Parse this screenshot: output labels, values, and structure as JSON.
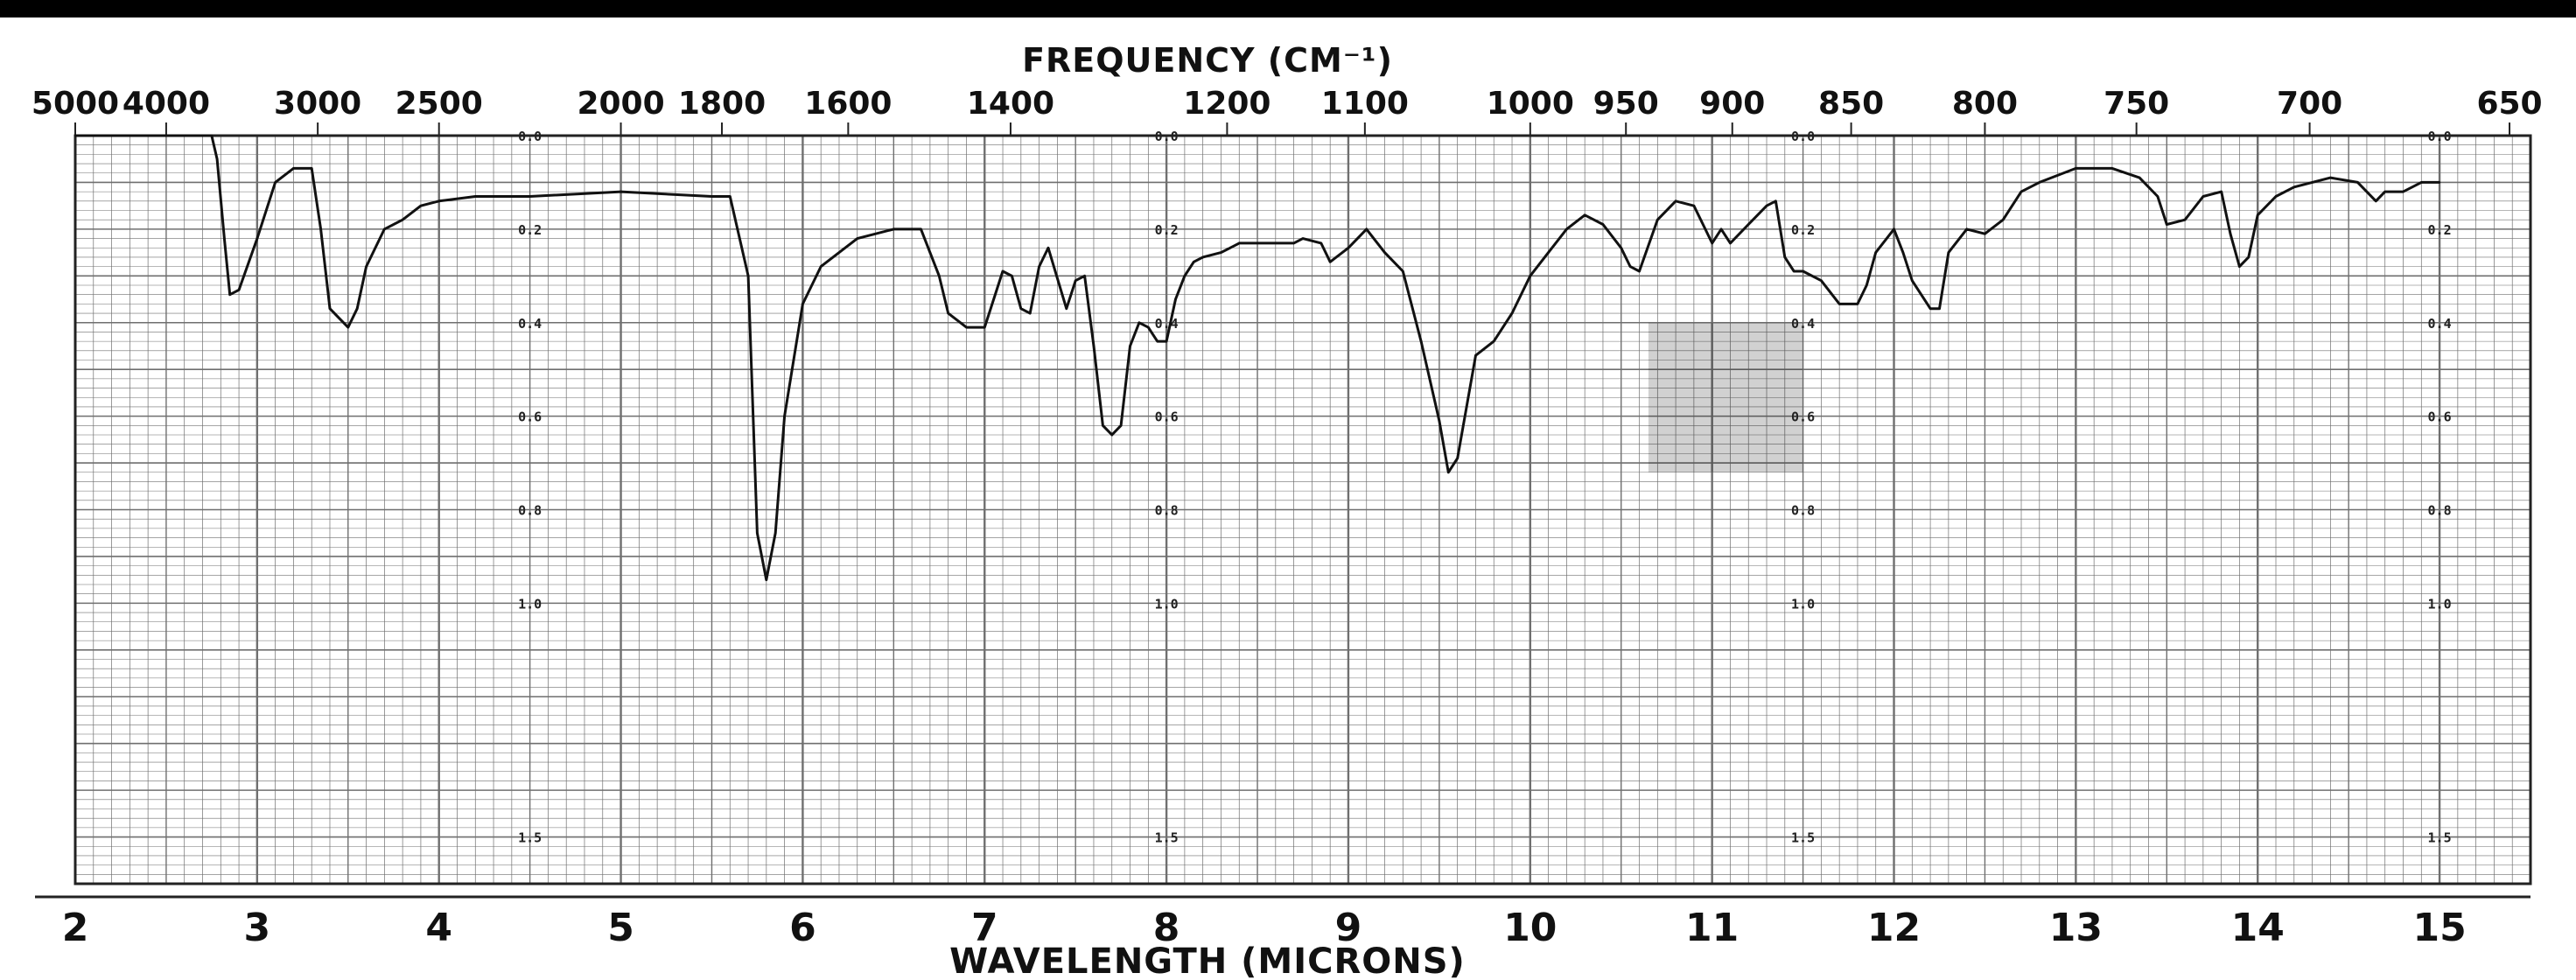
{
  "chart_data": {
    "type": "line",
    "title_top": "FREQUENCY (CM⁻¹)",
    "xlabel": "WAVELENGTH (MICRONS)",
    "x_unit": "microns",
    "xlim": [
      2,
      15.5
    ],
    "ylim": [
      0,
      1.6
    ],
    "y_quantity": "absorbance",
    "grid": true,
    "frequency_ticks": [
      {
        "label": "5000",
        "value": 5000
      },
      {
        "label": "4000",
        "value": 4000
      },
      {
        "label": "3000",
        "value": 3000
      },
      {
        "label": "2500",
        "value": 2500
      },
      {
        "label": "2000",
        "value": 2000
      },
      {
        "label": "1800",
        "value": 1800
      },
      {
        "label": "1600",
        "value": 1600
      },
      {
        "label": "1400",
        "value": 1400
      },
      {
        "label": "1200",
        "value": 1200
      },
      {
        "label": "1100",
        "value": 1100
      },
      {
        "label": "1000",
        "value": 1000
      },
      {
        "label": "950",
        "value": 950
      },
      {
        "label": "900",
        "value": 900
      },
      {
        "label": "850",
        "value": 850
      },
      {
        "label": "800",
        "value": 800
      },
      {
        "label": "750",
        "value": 750
      },
      {
        "label": "700",
        "value": 700
      },
      {
        "label": "650",
        "value": 650
      }
    ],
    "wavelength_ticks": [
      {
        "label": "2",
        "value": 2
      },
      {
        "label": "3",
        "value": 3
      },
      {
        "label": "4",
        "value": 4
      },
      {
        "label": "5",
        "value": 5
      },
      {
        "label": "6",
        "value": 6
      },
      {
        "label": "7",
        "value": 7
      },
      {
        "label": "8",
        "value": 8
      },
      {
        "label": "9",
        "value": 9
      },
      {
        "label": "10",
        "value": 10
      },
      {
        "label": "11",
        "value": 11
      },
      {
        "label": "12",
        "value": 12
      },
      {
        "label": "13",
        "value": 13
      },
      {
        "label": "14",
        "value": 14
      },
      {
        "label": "15",
        "value": 15
      }
    ],
    "absorbance_labels": [
      "0.0",
      "0.2",
      "0.4",
      "0.6",
      "0.8",
      "1.0",
      "1.5"
    ],
    "absorbance_label_columns": [
      4.5,
      8.0,
      11.5,
      15.0
    ],
    "series": [
      {
        "x": [
          2.0,
          2.5,
          2.75,
          2.78,
          2.82,
          2.85,
          2.9,
          3.0,
          3.1,
          3.2,
          3.3,
          3.35,
          3.4,
          3.45,
          3.5,
          3.55,
          3.6,
          3.7,
          3.8,
          3.9,
          4.0,
          4.2,
          4.5,
          5.0,
          5.5,
          5.6,
          5.7,
          5.75,
          5.8,
          5.85,
          5.9,
          6.0,
          6.1,
          6.2,
          6.3,
          6.5,
          6.65,
          6.75,
          6.8,
          6.9,
          7.0,
          7.1,
          7.15,
          7.2,
          7.25,
          7.3,
          7.35,
          7.45,
          7.5,
          7.55,
          7.6,
          7.65,
          7.7,
          7.75,
          7.8,
          7.85,
          7.9,
          7.95,
          8.0,
          8.05,
          8.1,
          8.15,
          8.2,
          8.3,
          8.35,
          8.4,
          8.5,
          8.6,
          8.7,
          8.75,
          8.85,
          8.9,
          9.0,
          9.1,
          9.2,
          9.3,
          9.4,
          9.5,
          9.55,
          9.6,
          9.7,
          9.8,
          9.9,
          10.0,
          10.1,
          10.2,
          10.3,
          10.4,
          10.5,
          10.55,
          10.6,
          10.7,
          10.8,
          10.9,
          10.95,
          11.0,
          11.05,
          11.1,
          11.2,
          11.3,
          11.35,
          11.4,
          11.45,
          11.5,
          11.6,
          11.7,
          11.8,
          11.85,
          11.9,
          12.0,
          12.05,
          12.1,
          12.2,
          12.25,
          12.3,
          12.4,
          12.5,
          12.6,
          12.7,
          12.8,
          13.0,
          13.2,
          13.35,
          13.45,
          13.5,
          13.6,
          13.7,
          13.8,
          13.85,
          13.9,
          13.95,
          14.0,
          14.1,
          14.2,
          14.4,
          14.55,
          14.65,
          14.7,
          14.8,
          14.9,
          15.0
        ],
        "y": [
          0.0,
          0.0,
          0.0,
          0.05,
          0.22,
          0.34,
          0.33,
          0.22,
          0.1,
          0.07,
          0.07,
          0.2,
          0.37,
          0.39,
          0.41,
          0.37,
          0.28,
          0.2,
          0.18,
          0.15,
          0.14,
          0.13,
          0.13,
          0.12,
          0.13,
          0.13,
          0.3,
          0.85,
          0.95,
          0.85,
          0.6,
          0.36,
          0.28,
          0.25,
          0.22,
          0.2,
          0.2,
          0.3,
          0.38,
          0.41,
          0.41,
          0.29,
          0.3,
          0.37,
          0.38,
          0.28,
          0.24,
          0.37,
          0.31,
          0.3,
          0.45,
          0.62,
          0.64,
          0.62,
          0.45,
          0.4,
          0.41,
          0.44,
          0.44,
          0.35,
          0.3,
          0.27,
          0.26,
          0.25,
          0.24,
          0.23,
          0.23,
          0.23,
          0.23,
          0.22,
          0.23,
          0.27,
          0.24,
          0.2,
          0.25,
          0.29,
          0.44,
          0.61,
          0.72,
          0.69,
          0.47,
          0.44,
          0.38,
          0.3,
          0.25,
          0.2,
          0.17,
          0.19,
          0.24,
          0.28,
          0.29,
          0.18,
          0.14,
          0.15,
          0.19,
          0.23,
          0.2,
          0.23,
          0.19,
          0.15,
          0.14,
          0.26,
          0.29,
          0.29,
          0.31,
          0.36,
          0.36,
          0.32,
          0.25,
          0.2,
          0.25,
          0.31,
          0.37,
          0.37,
          0.25,
          0.2,
          0.21,
          0.18,
          0.12,
          0.1,
          0.07,
          0.07,
          0.09,
          0.13,
          0.19,
          0.18,
          0.13,
          0.12,
          0.21,
          0.28,
          0.26,
          0.17,
          0.13,
          0.11,
          0.09,
          0.1,
          0.14,
          0.12,
          0.12,
          0.1,
          0.1
        ]
      }
    ],
    "colors": {
      "background": "#ffffff",
      "header_band": "#000000",
      "grid": "#6f6f6f",
      "curve": "#111111",
      "text": "#111111"
    }
  }
}
